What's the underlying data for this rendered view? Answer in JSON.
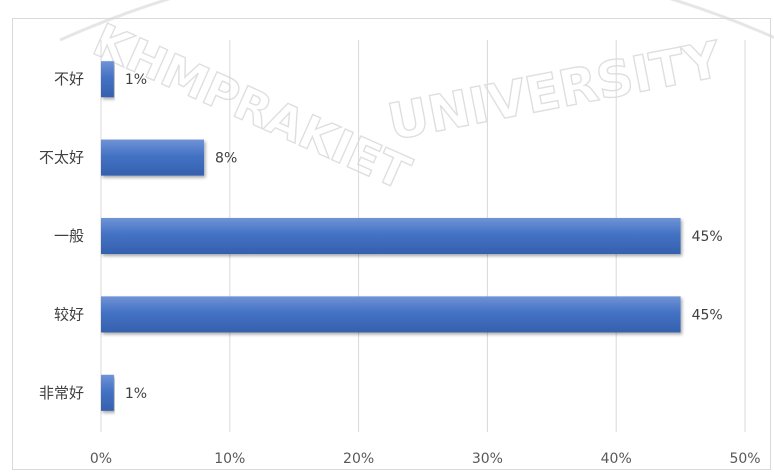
{
  "chart_data": {
    "type": "bar",
    "orientation": "horizontal",
    "categories": [
      "不好",
      "不太好",
      "一般",
      "较好",
      "非常好"
    ],
    "values": [
      1,
      8,
      45,
      45,
      1
    ],
    "data_labels": [
      "1%",
      "8%",
      "45%",
      "45%",
      "1%"
    ],
    "xlim": [
      0,
      50
    ],
    "x_ticks": [
      0,
      10,
      20,
      30,
      40,
      50
    ],
    "x_tick_labels": [
      "0%",
      "10%",
      "20%",
      "30%",
      "40%",
      "50%"
    ],
    "title": "",
    "xlabel": "",
    "ylabel": "",
    "grid": "vertical",
    "legend": "none",
    "bar_color": "#4472c4"
  },
  "watermark": {
    "line1": "KHMPRAKIET",
    "line2": "UNIVERSITY"
  }
}
